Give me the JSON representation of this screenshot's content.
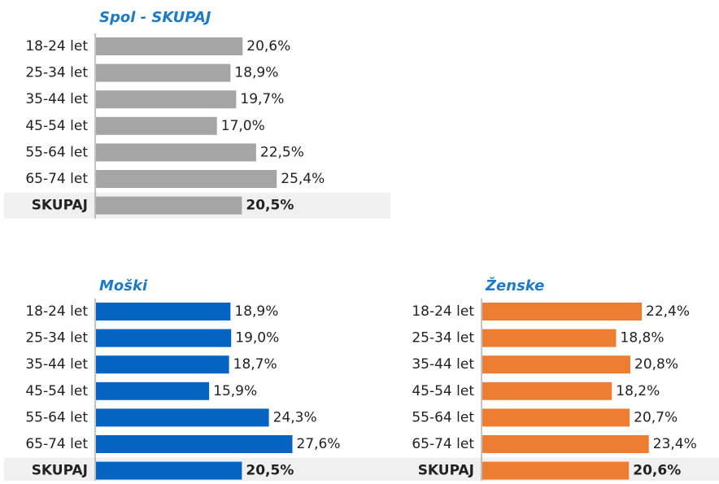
{
  "chart_data": [
    {
      "type": "bar",
      "title": "Spol - SKUPAJ",
      "color": "#a5a5a5",
      "categories": [
        "18-24 let",
        "25-34 let",
        "35-44 let",
        "45-54 let",
        "55-64 let",
        "65-74 let",
        "SKUPAJ"
      ],
      "values": [
        20.6,
        18.9,
        19.7,
        17.0,
        22.5,
        25.4,
        20.5
      ],
      "value_labels": [
        "20,6%",
        "18,9%",
        "19,7%",
        "17,0%",
        "22,5%",
        "25,4%",
        "20,5%"
      ]
    },
    {
      "type": "bar",
      "title": "Moški",
      "color": "#0563c1",
      "categories": [
        "18-24 let",
        "25-34 let",
        "35-44 let",
        "45-54 let",
        "55-64 let",
        "65-74 let",
        "SKUPAJ"
      ],
      "values": [
        18.9,
        19.0,
        18.7,
        15.9,
        24.3,
        27.6,
        20.5
      ],
      "value_labels": [
        "18,9%",
        "19,0%",
        "18,7%",
        "15,9%",
        "24,3%",
        "27,6%",
        "20,5%"
      ]
    },
    {
      "type": "bar",
      "title": "Ženske",
      "color": "#ed7d31",
      "categories": [
        "18-24 let",
        "25-34 let",
        "35-44 let",
        "45-54 let",
        "55-64 let",
        "65-74 let",
        "SKUPAJ"
      ],
      "values": [
        22.4,
        18.8,
        20.8,
        18.2,
        20.7,
        23.4,
        20.6
      ],
      "value_labels": [
        "22,4%",
        "18,8%",
        "20,8%",
        "18,2%",
        "20,7%",
        "23,4%",
        "20,6%"
      ]
    }
  ]
}
